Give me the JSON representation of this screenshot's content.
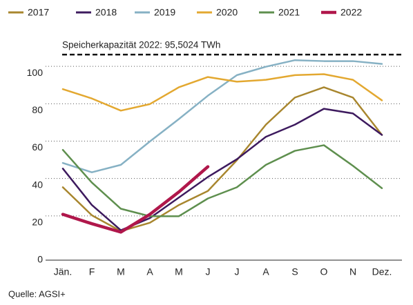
{
  "chart_data": {
    "type": "line",
    "categories": [
      "Jän.",
      "F",
      "M",
      "A",
      "M",
      "J",
      "J",
      "A",
      "S",
      "O",
      "N",
      "Dez."
    ],
    "series": [
      {
        "name": "2017",
        "color": "#a8862e",
        "values": [
          39,
          24,
          15.5,
          20,
          29.5,
          37,
          53.5,
          72.5,
          87,
          92.5,
          87,
          67
        ]
      },
      {
        "name": "2018",
        "color": "#3d1a5e",
        "values": [
          49,
          29.5,
          16,
          22.5,
          33.5,
          44.5,
          54,
          66,
          72.5,
          81,
          78.5,
          67
        ]
      },
      {
        "name": "2019",
        "color": "#86b1c4",
        "values": [
          52,
          47,
          51,
          63.5,
          75.5,
          88,
          99,
          103.5,
          107,
          106.5,
          106.5,
          105
        ]
      },
      {
        "name": "2020",
        "color": "#e3a830",
        "values": [
          91.5,
          86.5,
          80,
          83.5,
          92.5,
          98,
          95.5,
          96.5,
          99,
          99.5,
          96.5,
          85.5
        ]
      },
      {
        "name": "2021",
        "color": "#5e8f4e",
        "values": [
          59,
          41.5,
          27.5,
          23.5,
          23.5,
          33,
          39,
          51,
          58.5,
          61.5,
          50.5,
          38.5
        ]
      },
      {
        "name": "2022",
        "color": "#b0174b",
        "values": [
          24.5,
          19.5,
          15,
          24.5,
          36.5,
          50,
          null,
          null,
          null,
          null,
          null,
          null
        ]
      }
    ],
    "reference_line": {
      "value": 110,
      "label": "Speicherkapazität 2022: 95,5024 TWh"
    },
    "ylim": [
      0,
      120
    ],
    "yticks": [
      0,
      20,
      40,
      60,
      80,
      100
    ],
    "grid": true,
    "legend": "top",
    "source": "Quelle: AGSI+"
  }
}
